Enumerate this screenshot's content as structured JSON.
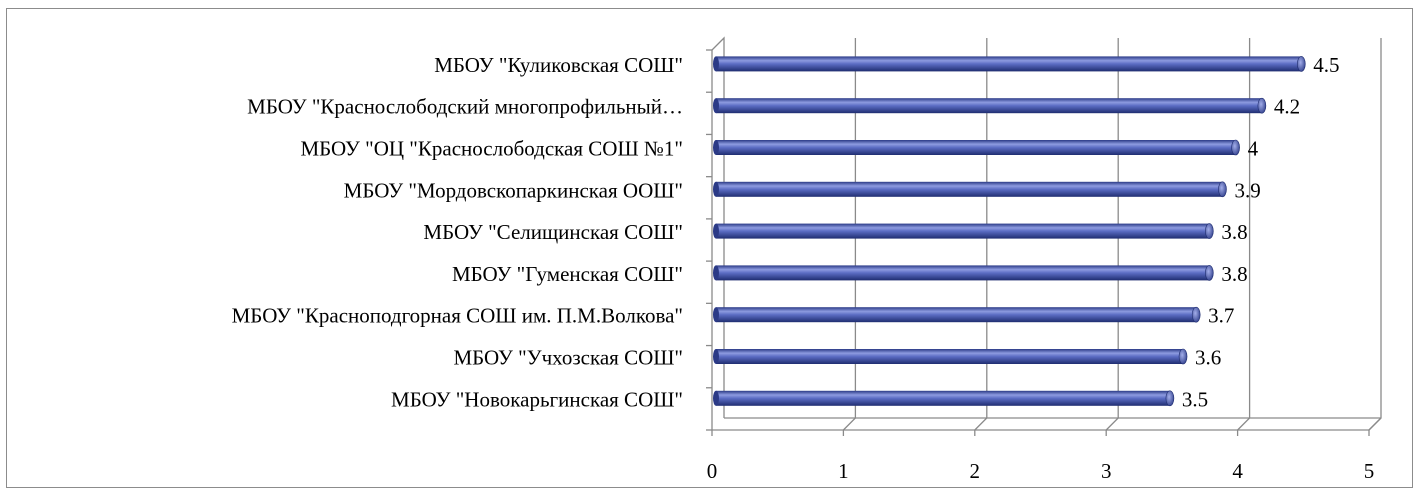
{
  "chart_data": {
    "type": "bar",
    "orientation": "horizontal",
    "style": "3d-cylinder",
    "categories": [
      "МБОУ \"Куликовская СОШ\"",
      "МБОУ \"Краснослободский многопрофильный…",
      "МБОУ \"ОЦ \"Краснослободская СОШ №1\"",
      "МБОУ \"Мордовскопаркинская ООШ\"",
      "МБОУ \"Селищинская СОШ\"",
      "МБОУ \"Гуменская СОШ\"",
      "МБОУ \"Красноподгорная СОШ им. П.М.Волкова\"",
      "МБОУ \"Учхозская СОШ\"",
      "МБОУ \"Новокарьгинская СОШ\""
    ],
    "values": [
      4.5,
      4.2,
      4,
      3.9,
      3.8,
      3.8,
      3.7,
      3.6,
      3.5
    ],
    "data_labels": [
      "4.5",
      "4.2",
      "4",
      "3.9",
      "3.8",
      "3.8",
      "3.7",
      "3.6",
      "3.5"
    ],
    "xlim": [
      0,
      5
    ],
    "x_ticks": [
      "0",
      "1",
      "2",
      "3",
      "4",
      "5"
    ],
    "grid": true,
    "legend": "none",
    "bar_color": "#4a5cb0"
  }
}
